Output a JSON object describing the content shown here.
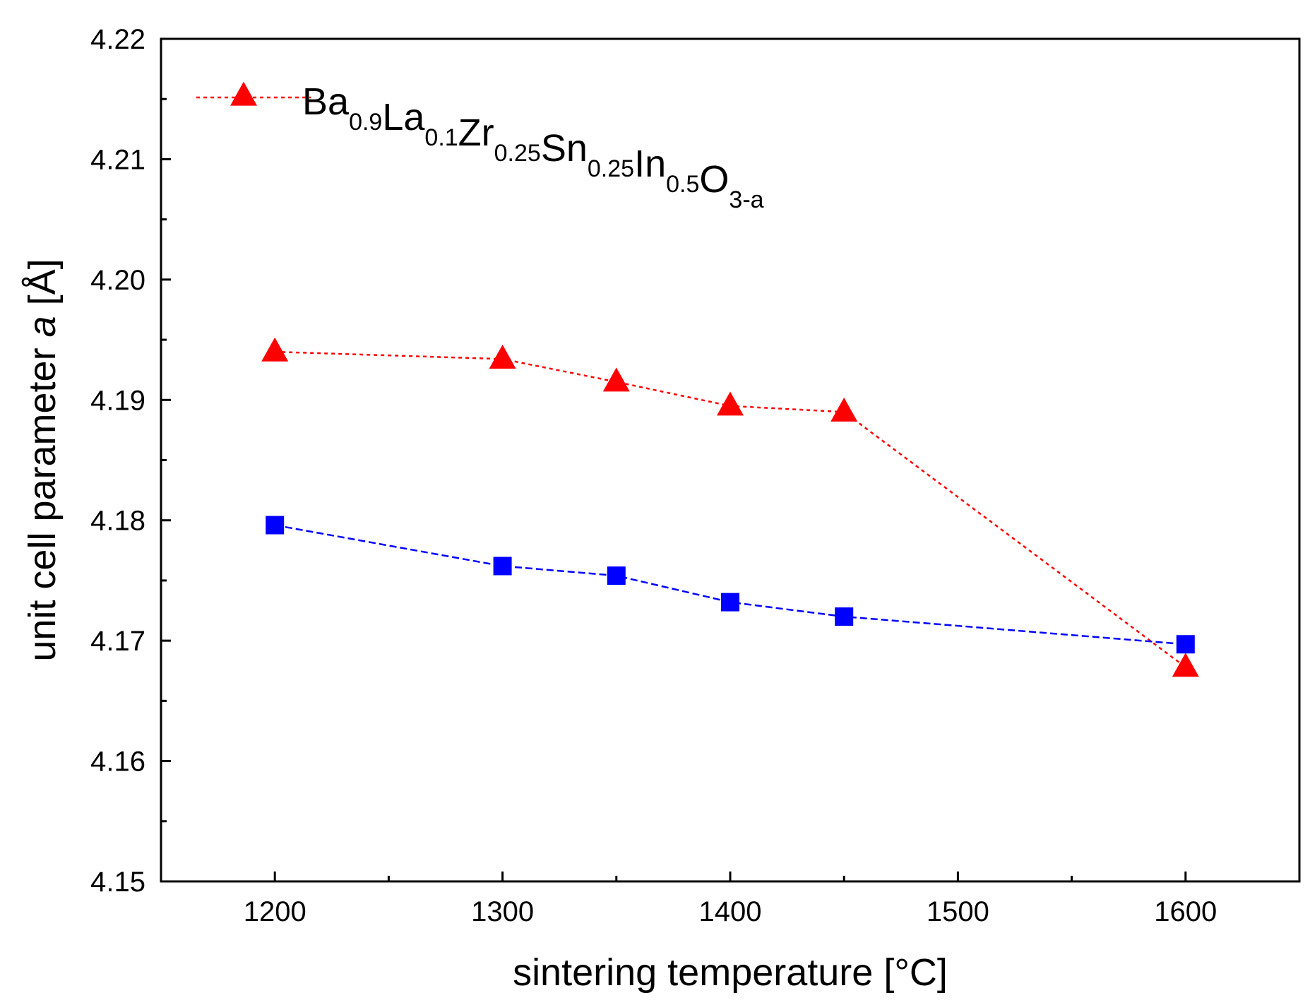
{
  "chart_data": {
    "type": "line",
    "xlabel": "sintering temperature [°C]",
    "ylabel_prefix": "unit cell parameter ",
    "ylabel_italic": "a",
    "ylabel_suffix": " [Å]",
    "xlim": [
      1150,
      1650
    ],
    "ylim": [
      4.15,
      4.22
    ],
    "x_ticks": [
      1200,
      1300,
      1400,
      1500,
      1600
    ],
    "x_tick_labels": [
      "1200",
      "1300",
      "1400",
      "1500",
      "1600"
    ],
    "x_minor_ticks": [
      1250,
      1350,
      1450,
      1550
    ],
    "y_ticks": [
      4.15,
      4.16,
      4.17,
      4.18,
      4.19,
      4.2,
      4.21,
      4.22
    ],
    "y_tick_labels": [
      "4.15",
      "4.16",
      "4.17",
      "4.18",
      "4.19",
      "4.20",
      "4.21",
      "4.22"
    ],
    "y_minor_ticks": [
      4.155,
      4.165,
      4.175,
      4.185,
      4.195,
      4.205,
      4.215
    ],
    "grid": false,
    "legend_position": "top-left",
    "series": [
      {
        "name": "Ba0.9La0.1Zr0.25Sn0.25In0.5O3-a",
        "name_parts": [
          {
            "t": "Ba",
            "sub": "0.9"
          },
          {
            "t": "La",
            "sub": "0.1"
          },
          {
            "t": "Zr",
            "sub": "0.25"
          },
          {
            "t": "Sn",
            "sub": "0.25"
          },
          {
            "t": "In",
            "sub": "0.5"
          },
          {
            "t": "O",
            "sub": "3-a"
          }
        ],
        "marker": "triangle",
        "color": "#ff0000",
        "line_style": "dotted",
        "in_legend": true,
        "x": [
          1200,
          1300,
          1350,
          1400,
          1450,
          1600
        ],
        "y": [
          4.194,
          4.1934,
          4.1915,
          4.1895,
          4.189,
          4.1678
        ]
      },
      {
        "name": "",
        "marker": "square",
        "color": "#0000ff",
        "line_style": "dashed",
        "in_legend": false,
        "x": [
          1200,
          1300,
          1350,
          1400,
          1450,
          1600
        ],
        "y": [
          4.1796,
          4.1762,
          4.1754,
          4.1732,
          4.172,
          4.1697
        ]
      }
    ]
  }
}
